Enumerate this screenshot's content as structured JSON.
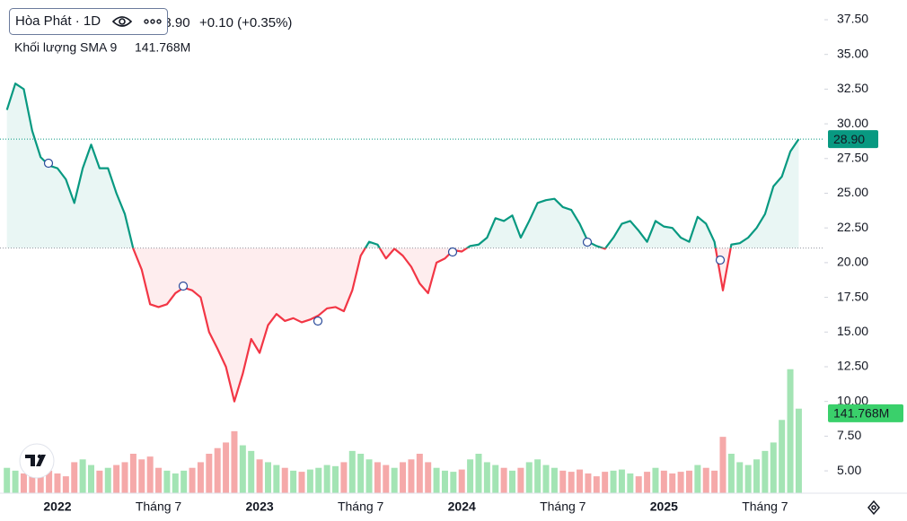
{
  "header": {
    "symbol": "Hòa Phát · 1D",
    "change": "+0.10 (+0.35%)"
  },
  "chart_data": {
    "type": "baseline",
    "categories": [
      null,
      null,
      null,
      null,
      null,
      null,
      "2022",
      null,
      null,
      null,
      null,
      null,
      null,
      null,
      null,
      null,
      null,
      null,
      "Tháng 7",
      null,
      null,
      null,
      null,
      null,
      null,
      null,
      null,
      null,
      null,
      null,
      "2023",
      null,
      null,
      null,
      null,
      null,
      null,
      null,
      null,
      null,
      null,
      null,
      "Tháng 7",
      null,
      null,
      null,
      null,
      null,
      null,
      null,
      null,
      null,
      null,
      null,
      "2024",
      null,
      null,
      null,
      null,
      null,
      null,
      null,
      null,
      null,
      null,
      null,
      "Tháng 7",
      null,
      null,
      null,
      null,
      null,
      null,
      null,
      null,
      null,
      null,
      null,
      "2025",
      null,
      null,
      null,
      null,
      null,
      null,
      null,
      null,
      null,
      null,
      null,
      "Tháng 7",
      null,
      null,
      null,
      null
    ],
    "values": [
      31.0,
      32.9,
      32.5,
      29.5,
      27.6,
      27.0,
      26.8,
      26.0,
      24.3,
      26.8,
      28.5,
      26.8,
      26.8,
      25.0,
      23.5,
      21.0,
      19.5,
      17.0,
      16.8,
      17.0,
      17.8,
      18.2,
      18.0,
      17.5,
      15.0,
      13.8,
      12.5,
      10.0,
      12.0,
      14.5,
      13.5,
      15.5,
      16.3,
      15.8,
      16.0,
      15.7,
      15.9,
      16.2,
      16.7,
      16.8,
      16.5,
      18.0,
      20.5,
      21.5,
      21.3,
      20.3,
      21.0,
      20.5,
      19.7,
      18.5,
      17.8,
      20.0,
      20.3,
      20.9,
      20.8,
      21.2,
      21.3,
      21.8,
      23.2,
      23.0,
      23.4,
      21.8,
      23.0,
      24.3,
      24.5,
      24.6,
      24.0,
      23.8,
      22.8,
      21.5,
      21.2,
      21.0,
      21.8,
      22.8,
      23.0,
      22.3,
      21.5,
      23.0,
      22.6,
      22.5,
      21.8,
      21.5,
      23.3,
      22.8,
      21.5,
      18.0,
      21.3,
      21.4,
      21.8,
      22.5,
      23.5,
      25.5,
      26.2,
      28.0,
      28.9
    ],
    "baseline": 21.05,
    "up_color": "#089981",
    "down_color": "#f23645",
    "last_value": 28.9,
    "last_label": "28.90",
    "ylim": [
      3.39,
      38.92
    ],
    "yticks": [
      {
        "value": 5,
        "label": "5.00"
      },
      {
        "value": 7.5,
        "label": "7.50"
      },
      {
        "value": 10,
        "label": "10.00"
      },
      {
        "value": 12.5,
        "label": "12.50"
      },
      {
        "value": 15,
        "label": "15.00"
      },
      {
        "value": 17.5,
        "label": "17.50"
      },
      {
        "value": 20,
        "label": "20.00"
      },
      {
        "value": 22.5,
        "label": "22.50"
      },
      {
        "value": 25,
        "label": "25.00"
      },
      {
        "value": 27.5,
        "label": "27.50"
      },
      {
        "value": 30,
        "label": "30.00"
      },
      {
        "value": 32.5,
        "label": "32.50"
      },
      {
        "value": 35,
        "label": "35.00"
      },
      {
        "value": 37.5,
        "label": "37.50"
      }
    ],
    "grid": false,
    "volume": {
      "name": "Khối lượng SMA 9",
      "values": [
        45,
        40,
        35,
        50,
        60,
        40,
        35,
        30,
        55,
        60,
        50,
        40,
        45,
        50,
        55,
        70,
        60,
        65,
        45,
        40,
        35,
        40,
        45,
        55,
        70,
        80,
        90,
        110,
        85,
        75,
        60,
        55,
        50,
        45,
        40,
        38,
        42,
        45,
        50,
        48,
        55,
        75,
        70,
        60,
        55,
        50,
        45,
        55,
        60,
        70,
        55,
        45,
        40,
        38,
        42,
        60,
        70,
        55,
        50,
        45,
        40,
        45,
        55,
        60,
        50,
        45,
        40,
        38,
        42,
        35,
        30,
        38,
        40,
        42,
        35,
        30,
        38,
        45,
        40,
        35,
        38,
        40,
        50,
        45,
        40,
        100,
        70,
        55,
        50,
        60,
        75,
        90,
        130,
        220,
        150
      ],
      "sma": 141.768,
      "sma_label": "141.768M",
      "ylim": [
        0,
        350
      ],
      "up_color": "#a3e4b4",
      "down_color": "#f5a9a9",
      "sma_color": "#3ad06b"
    }
  }
}
